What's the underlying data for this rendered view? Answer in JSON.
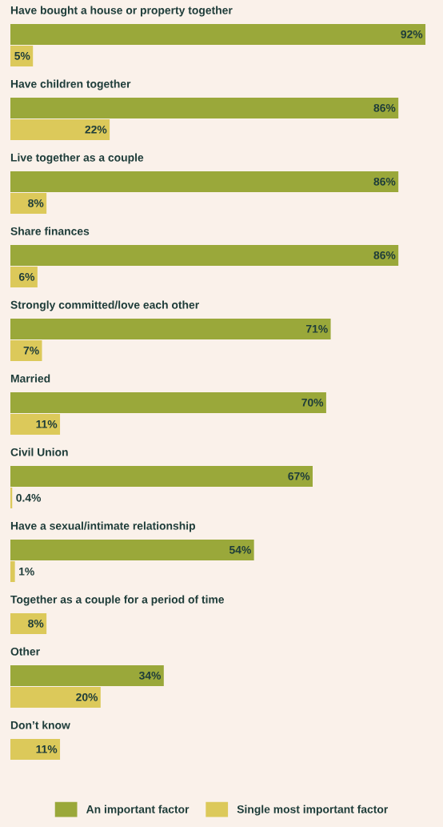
{
  "chart_data": {
    "type": "bar",
    "orientation": "horizontal",
    "categories": [
      "Have bought a house or property together",
      "Have children together",
      "Live together as a couple",
      "Share finances",
      "Strongly committed/love each other",
      "Married",
      "Civil Union",
      "Have a sexual/intimate relationship",
      "Together as a couple for a period of time",
      "Other",
      "Don’t know"
    ],
    "series": [
      {
        "name": "An important factor",
        "color": "#9aa83a",
        "values": [
          92,
          86,
          86,
          86,
          71,
          70,
          67,
          54,
          null,
          34,
          null
        ],
        "value_labels": [
          "92%",
          "86%",
          "86%",
          "86%",
          "71%",
          "70%",
          "67%",
          "54%",
          null,
          "34%",
          null
        ]
      },
      {
        "name": "Single most important factor",
        "color": "#dcc95a",
        "values": [
          5,
          22,
          8,
          6,
          7,
          11,
          0.4,
          1,
          8,
          20,
          11
        ],
        "value_labels": [
          "5%",
          "22%",
          "8%",
          "6%",
          "7%",
          "11%",
          "0.4%",
          "1%",
          "8%",
          "20%",
          "11%"
        ]
      }
    ],
    "legend": "bottom"
  }
}
